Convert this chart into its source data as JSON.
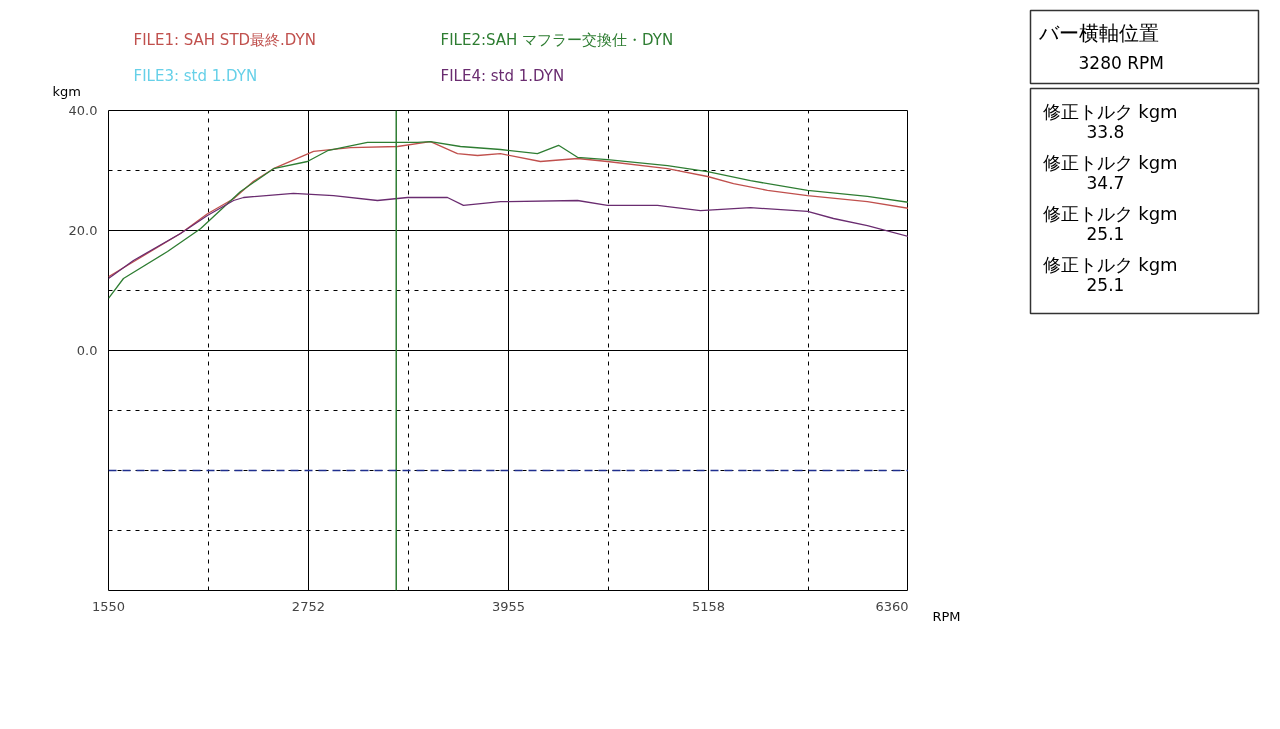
{
  "chart_data": {
    "type": "line",
    "series": [
      {
        "name": "FILE1: SAH STD最終.DYN",
        "color": "#c0504d",
        "x": [
          1550,
          1700,
          1983,
          2145,
          2302,
          2422,
          2542,
          2783,
          3005,
          3288,
          3486,
          3648,
          3769,
          3907,
          4147,
          4370,
          4550,
          4911,
          5152,
          5308,
          5512,
          5753,
          6113,
          6360
        ],
        "values": [
          12.3,
          14.8,
          19.5,
          22.8,
          25.3,
          28.2,
          30.3,
          33.2,
          33.8,
          34.0,
          34.8,
          32.8,
          32.5,
          32.8,
          31.5,
          32.0,
          31.5,
          30.3,
          29.0,
          27.8,
          26.7,
          25.8,
          24.8,
          23.7
        ]
      },
      {
        "name": "FILE2:SAH マフラー交換仕・DYN",
        "color": "#2e7d32",
        "x": [
          1550,
          1640,
          1905,
          2103,
          2344,
          2542,
          2746,
          2867,
          3107,
          3408,
          3486,
          3666,
          3907,
          4129,
          4256,
          4370,
          4550,
          4911,
          5152,
          5410,
          5753,
          6113,
          6360
        ],
        "values": [
          8.7,
          12.0,
          16.5,
          20.3,
          26.5,
          30.3,
          31.5,
          33.3,
          34.7,
          34.7,
          34.8,
          34.0,
          33.5,
          32.8,
          34.2,
          32.2,
          31.8,
          30.8,
          29.8,
          28.3,
          26.7,
          25.7,
          24.7
        ]
      },
      {
        "name": "FILE3: std 1.DYN",
        "color": "#66d0e8"
      },
      {
        "name": "FILE4: std 1.DYN",
        "color": "#6a2c70",
        "x": [
          1550,
          1700,
          1983,
          2145,
          2302,
          2362,
          2662,
          2903,
          3167,
          3348,
          3588,
          3684,
          3907,
          4370,
          4550,
          4851,
          5109,
          5410,
          5753,
          5909,
          6113,
          6360
        ],
        "values": [
          12.0,
          15.0,
          19.5,
          22.5,
          25.0,
          25.5,
          26.2,
          25.8,
          25.0,
          25.5,
          25.5,
          24.2,
          24.8,
          25.0,
          24.2,
          24.2,
          23.3,
          23.8,
          23.2,
          22.0,
          20.8,
          19.0
        ]
      }
    ],
    "xlabel": "RPM",
    "ylabel": "kgm",
    "xlim": [
      1550,
      6360
    ],
    "ylim": [
      -40,
      40
    ],
    "xticks": [
      1550,
      {
        "value": 2151.25,
        "label": null
      },
      2752,
      {
        "value": 3353.5,
        "label": null
      },
      3955,
      {
        "value": 4556.5,
        "label": null
      },
      5158,
      {
        "value": 5759,
        "label": null
      },
      6360
    ],
    "yticks": [
      {
        "value": 40,
        "label": "40.0"
      },
      {
        "value": 30,
        "label": null
      },
      {
        "value": 20,
        "label": "20.0"
      },
      {
        "value": 10,
        "label": null
      },
      {
        "value": 0,
        "label": "0.0"
      },
      {
        "value": -10,
        "label": null
      },
      {
        "value": -20,
        "label": null
      },
      {
        "value": -30,
        "label": null
      }
    ],
    "grid": true,
    "marker": "none",
    "line_style": "solid",
    "ref_lines": [
      {
        "axis": "x",
        "value": 3280,
        "color": "#2e7d32",
        "line_style": "solid"
      },
      {
        "axis": "y",
        "value": -20,
        "color": "#1f2f8f",
        "line_style": "dashed"
      }
    ],
    "annotations": [
      "バー横軸位置",
      "3280 RPM",
      "修正トルク kgm",
      "33.8",
      "修正トルク kgm",
      "34.7",
      "修正トルク kgm",
      "25.1",
      "修正トルク kgm",
      "25.1"
    ]
  }
}
